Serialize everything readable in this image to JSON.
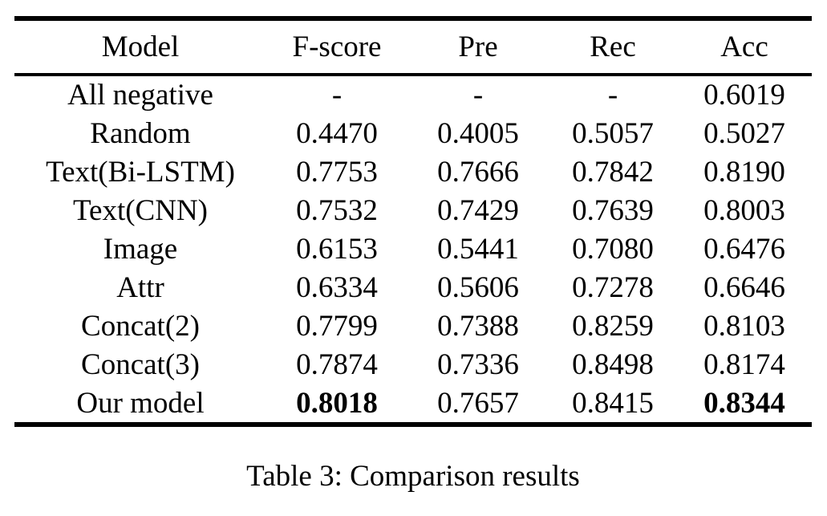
{
  "table": {
    "columns": [
      "Model",
      "F-score",
      "Pre",
      "Rec",
      "Acc"
    ],
    "rows": [
      {
        "model": "All negative",
        "values": [
          "-",
          "-",
          "-",
          "0.6019"
        ],
        "bold": [
          false,
          false,
          false,
          false
        ]
      },
      {
        "model": "Random",
        "values": [
          "0.4470",
          "0.4005",
          "0.5057",
          "0.5027"
        ],
        "bold": [
          false,
          false,
          false,
          false
        ]
      },
      {
        "model": "Text(Bi-LSTM)",
        "values": [
          "0.7753",
          "0.7666",
          "0.7842",
          "0.8190"
        ],
        "bold": [
          false,
          false,
          false,
          false
        ]
      },
      {
        "model": "Text(CNN)",
        "values": [
          "0.7532",
          "0.7429",
          "0.7639",
          "0.8003"
        ],
        "bold": [
          false,
          false,
          false,
          false
        ]
      },
      {
        "model": "Image",
        "values": [
          "0.6153",
          "0.5441",
          "0.7080",
          "0.6476"
        ],
        "bold": [
          false,
          false,
          false,
          false
        ]
      },
      {
        "model": "Attr",
        "values": [
          "0.6334",
          "0.5606",
          "0.7278",
          "0.6646"
        ],
        "bold": [
          false,
          false,
          false,
          false
        ]
      },
      {
        "model": "Concat(2)",
        "values": [
          "0.7799",
          "0.7388",
          "0.8259",
          "0.8103"
        ],
        "bold": [
          false,
          false,
          false,
          false
        ]
      },
      {
        "model": "Concat(3)",
        "values": [
          "0.7874",
          "0.7336",
          "0.8498",
          "0.8174"
        ],
        "bold": [
          false,
          false,
          false,
          false
        ]
      },
      {
        "model": "Our model",
        "values": [
          "0.8018",
          "0.7657",
          "0.8415",
          "0.8344"
        ],
        "bold": [
          true,
          false,
          false,
          true
        ]
      }
    ]
  },
  "caption": "Table 3: Comparison results",
  "colors": {
    "text": "#000000",
    "rule": "#000000",
    "background": "#ffffff"
  }
}
